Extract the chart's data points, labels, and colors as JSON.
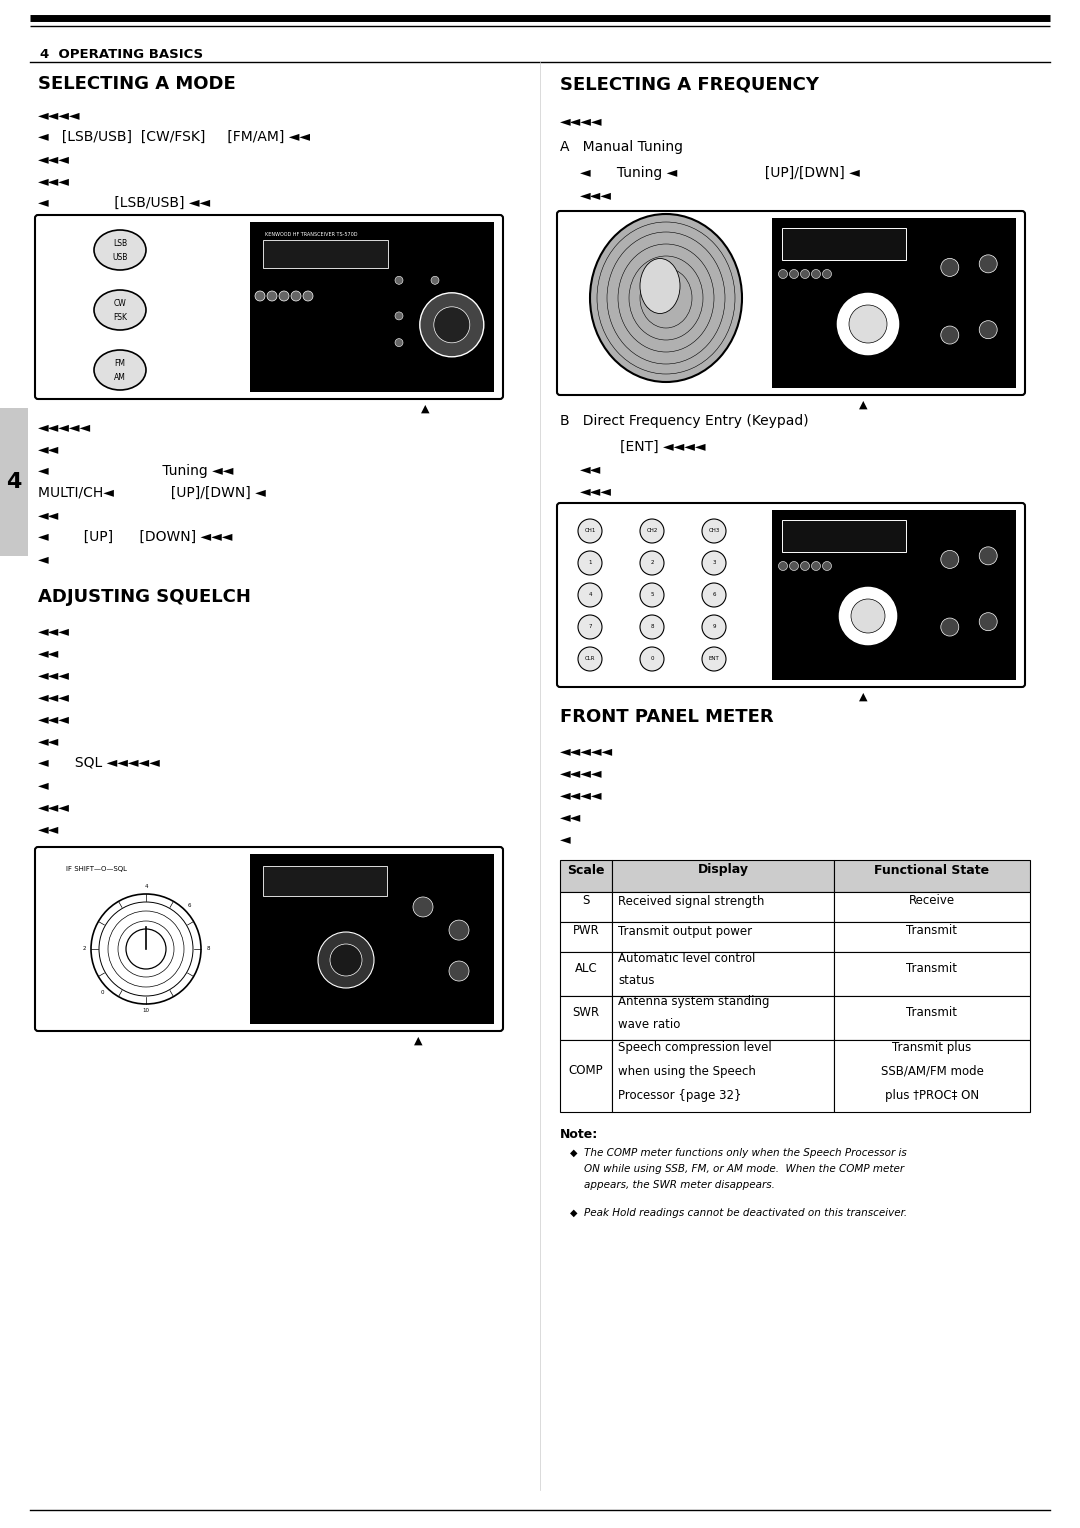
{
  "page_width": 10.8,
  "page_height": 15.28,
  "bg_color": "#ffffff",
  "header_text": "4  OPERATING BASICS",
  "section1_title": "SELECTING A MODE",
  "section2_title": "SELECTING A FREQUENCY",
  "section3_title": "ADJUSTING SQUELCH",
  "section4_title": "FRONT PANEL METER",
  "arrow": "◄",
  "table_headers": [
    "Scale",
    "Display",
    "Functional State"
  ],
  "table_rows": [
    [
      "S",
      "Received signal strength",
      "Receive"
    ],
    [
      "PWR",
      "Transmit output power",
      "Transmit"
    ],
    [
      "ALC",
      "Automatic level control\nstatus",
      "Transmit"
    ],
    [
      "SWR",
      "Antenna system standing\nwave ratio",
      "Transmit"
    ],
    [
      "COMP",
      "Speech compression level\nwhen using the Speech\nProcessor {page 32}",
      "Transmit plus\nSSB/AM/FM mode\nplus †PROC‡ ON"
    ]
  ],
  "note_bullets": [
    "The COMP meter functions only when the Speech Processor is\nON while using SSB, FM, or AM mode.  When the COMP meter\nappears, the SWR meter disappears.",
    "Peak Hold readings cannot be deactivated on this transceiver."
  ]
}
